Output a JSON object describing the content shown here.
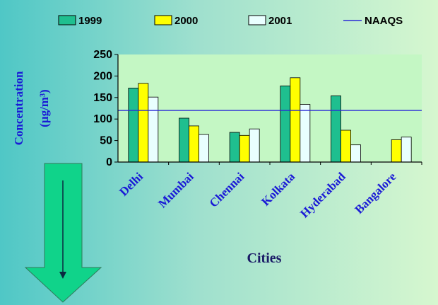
{
  "colors": {
    "series_1999": "#1fbf8f",
    "series_2000": "#ffff00",
    "series_2001": "#e9ffff",
    "naaqs_line": "#2a2ad6",
    "plot_background": "#c4f7c4",
    "arrow_fill": "#10d38a"
  },
  "icons": {
    "down_arrow": "down-arrow-icon"
  },
  "y_axis_title": {
    "line1": "Concentration",
    "line2": "(μg/m³)"
  },
  "x_axis_title": "Cities",
  "chart_data": {
    "type": "bar",
    "categories": [
      "Delhi",
      "Mumbai",
      "Chennai",
      "Kolkata",
      "Hyderabad",
      "Bangalore"
    ],
    "series": [
      {
        "name": "1999",
        "values": [
          172,
          102,
          69,
          177,
          154,
          null
        ]
      },
      {
        "name": "2000",
        "values": [
          183,
          84,
          62,
          196,
          74,
          52
        ]
      },
      {
        "name": "2001",
        "values": [
          151,
          64,
          77,
          134,
          40,
          58
        ]
      }
    ],
    "reference_line": {
      "name": "NAAQS",
      "value": 120
    },
    "legend": [
      "1999",
      "2000",
      "2001",
      "NAAQS"
    ],
    "legend_position": "top",
    "ylim": [
      0,
      250
    ],
    "yticks": [
      0,
      50,
      100,
      150,
      200,
      250
    ],
    "grid": false,
    "xlabel": "Cities",
    "ylabel": "Concentration (μg/m³)",
    "title": ""
  }
}
